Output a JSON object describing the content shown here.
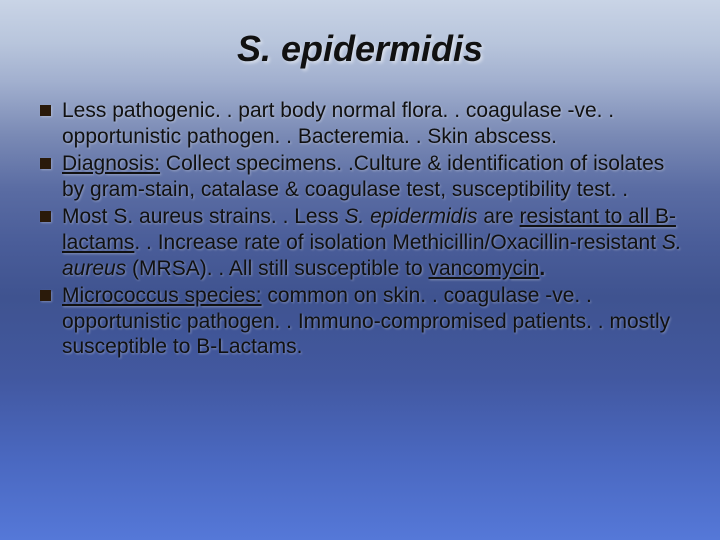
{
  "slide": {
    "title": "S. epidermidis",
    "title_fontsize": 36,
    "title_color": "#111111",
    "body_fontsize": 21,
    "body_color": "#111111",
    "bullet_color": "#2a1a0a",
    "background_gradient": [
      "#c9d4e6",
      "#b8c5dc",
      "#a2b0cf",
      "#7a8ab5",
      "#5a6ca3",
      "#4a5d99",
      "#3f5390",
      "#4258a0",
      "#4a68c0",
      "#5578d8"
    ],
    "bullets": [
      {
        "runs": [
          {
            "t": "Less pathogenic. . part body normal flora. . coagulase -ve. . opportunistic pathogen. . Bacteremia. . Skin abscess."
          }
        ]
      },
      {
        "runs": [
          {
            "t": "Diagnosis:",
            "u": true
          },
          {
            "t": " Collect specimens. .Culture & identification of isolates by gram-stain, catalase & coagulase test, susceptibility test. ."
          }
        ]
      },
      {
        "runs": [
          {
            "t": "Most S. aureus strains. . Less "
          },
          {
            "t": "S. epidermidis",
            "i": true
          },
          {
            "t": " are "
          },
          {
            "t": "resistant to all B-lactams",
            "u": true
          },
          {
            "t": ". . Increase rate of isolation Methicillin/Oxacillin-resistant "
          },
          {
            "t": "S. aureus",
            "i": true
          },
          {
            "t": " (MRSA). . All still susceptible to "
          },
          {
            "t": "vancomycin",
            "u": true
          },
          {
            "t": ".",
            "b": true
          }
        ]
      },
      {
        "runs": [
          {
            "t": "Micrococcus species:",
            "u": true
          },
          {
            "t": " common on skin. . coagulase -ve. . opportunistic pathogen. . Immuno-compromised patients. . mostly susceptible to B-Lactams."
          }
        ]
      }
    ]
  }
}
